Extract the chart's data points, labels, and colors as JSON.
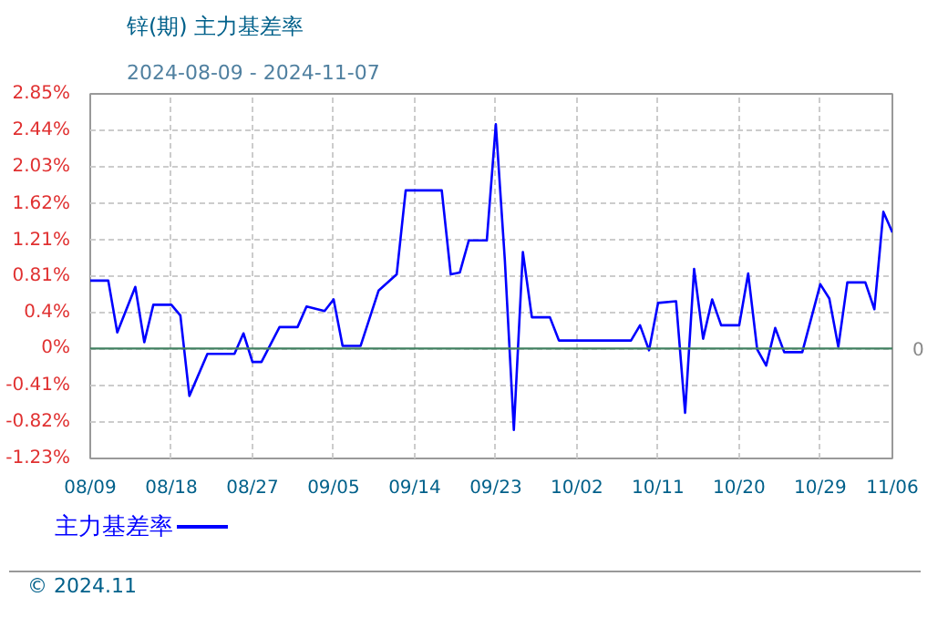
{
  "chart_data": {
    "type": "line",
    "title": "锌(期) 主力基差率",
    "subtitle": "2024-08-09 - 2024-11-07",
    "x": [
      "2024-08-09",
      "2024-08-11",
      "2024-08-12",
      "2024-08-14",
      "2024-08-15",
      "2024-08-16",
      "2024-08-18",
      "2024-08-19",
      "2024-08-20",
      "2024-08-22",
      "2024-08-25",
      "2024-08-26",
      "2024-08-27",
      "2024-08-28",
      "2024-08-30",
      "2024-09-01",
      "2024-09-02",
      "2024-09-04",
      "2024-09-05",
      "2024-09-06",
      "2024-09-08",
      "2024-09-10",
      "2024-09-12",
      "2024-09-13",
      "2024-09-17",
      "2024-09-18",
      "2024-09-19",
      "2024-09-20",
      "2024-09-22",
      "2024-09-23",
      "2024-09-24",
      "2024-09-25",
      "2024-09-26",
      "2024-09-27",
      "2024-09-29",
      "2024-09-30",
      "2024-10-08",
      "2024-10-09",
      "2024-10-10",
      "2024-10-11",
      "2024-10-13",
      "2024-10-14",
      "2024-10-15",
      "2024-10-16",
      "2024-10-17",
      "2024-10-18",
      "2024-10-20",
      "2024-10-21",
      "2024-10-22",
      "2024-10-23",
      "2024-10-24",
      "2024-10-25",
      "2024-10-27",
      "2024-10-29",
      "2024-10-30",
      "2024-10-31",
      "2024-11-01",
      "2024-11-03",
      "2024-11-04",
      "2024-11-05",
      "2024-11-06"
    ],
    "series": [
      {
        "name": "主力基差率",
        "color": "#0000ff",
        "values": [
          0.76,
          0.76,
          0.18,
          0.69,
          0.07,
          0.49,
          0.49,
          0.37,
          -0.53,
          -0.06,
          -0.06,
          0.17,
          -0.15,
          -0.15,
          0.24,
          0.24,
          0.47,
          0.42,
          0.55,
          0.03,
          0.03,
          0.65,
          0.83,
          1.77,
          1.77,
          0.83,
          0.85,
          1.21,
          1.21,
          2.51,
          0.99,
          -0.91,
          1.08,
          0.35,
          0.35,
          0.09,
          0.09,
          0.26,
          -0.02,
          0.51,
          0.53,
          -0.72,
          0.89,
          0.11,
          0.55,
          0.26,
          0.26,
          0.84,
          -0.01,
          -0.19,
          0.23,
          -0.04,
          -0.04,
          0.72,
          0.56,
          0.02,
          0.74,
          0.74,
          0.44,
          1.53,
          1.3
        ]
      }
    ],
    "xlim": [
      "2024-08-09",
      "2024-11-06"
    ],
    "xticks": [
      {
        "value": "2024-08-09",
        "label": "08/09"
      },
      {
        "value": "2024-08-18",
        "label": "08/18"
      },
      {
        "value": "2024-08-27",
        "label": "08/27"
      },
      {
        "value": "2024-09-05",
        "label": "09/05"
      },
      {
        "value": "2024-09-14",
        "label": "09/14"
      },
      {
        "value": "2024-09-23",
        "label": "09/23"
      },
      {
        "value": "2024-10-02",
        "label": "10/02"
      },
      {
        "value": "2024-10-11",
        "label": "10/11"
      },
      {
        "value": "2024-10-20",
        "label": "10/20"
      },
      {
        "value": "2024-10-29",
        "label": "10/29"
      },
      {
        "value": "2024-11-06",
        "label": "11/06"
      }
    ],
    "ylim": [
      -1.23,
      2.85
    ],
    "yticks": [
      {
        "value": -1.23,
        "label": "-1.23%"
      },
      {
        "value": -0.82,
        "label": "-0.82%"
      },
      {
        "value": -0.41,
        "label": "-0.41%"
      },
      {
        "value": 0,
        "label": "0%"
      },
      {
        "value": 0.4,
        "label": "0.4%"
      },
      {
        "value": 0.81,
        "label": "0.81%"
      },
      {
        "value": 1.21,
        "label": "1.21%"
      },
      {
        "value": 1.62,
        "label": "1.62%"
      },
      {
        "value": 2.03,
        "label": "2.03%"
      },
      {
        "value": 2.44,
        "label": "2.44%"
      },
      {
        "value": 2.85,
        "label": "2.85%"
      }
    ],
    "ref_lines": [
      {
        "axis": "y",
        "value": 0,
        "label": "0",
        "color": "#408060"
      }
    ],
    "grid": true,
    "legend": "bottom left",
    "marker": "none",
    "line_style": "solid",
    "annotations": [
      "© 2024.11"
    ]
  }
}
